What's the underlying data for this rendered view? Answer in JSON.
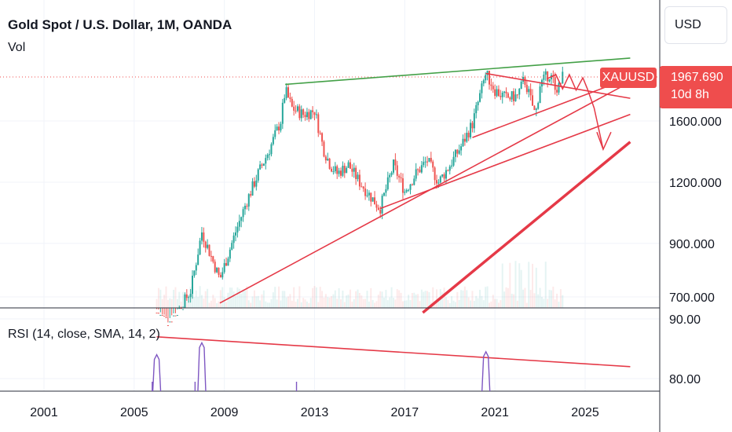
{
  "header": {
    "title": "Gold Spot / U.S. Dollar, 1M, OANDA",
    "vol_label": "Vol",
    "currency_button": "USD"
  },
  "price_tag": {
    "symbol": "XAUUSD",
    "price": "1967.690",
    "time_left": "10d 8h",
    "color": "#ef4d4d"
  },
  "rsi": {
    "label": "RSI (14, close, SMA, 14, 2)",
    "ticks": [
      "90.00",
      "80.00"
    ],
    "line_color": "#7e57c2"
  },
  "colors": {
    "up": "#26a69a",
    "down": "#ef5350",
    "green_line": "#43a047",
    "red_line": "#e53947"
  },
  "chart_data": {
    "type": "candlestick",
    "title": "Gold Spot / U.S. Dollar, 1M, OANDA",
    "x_ticks": [
      "2001",
      "2005",
      "2009",
      "2013",
      "2017",
      "2021",
      "2025"
    ],
    "y_ticks": [
      "1600.000",
      "1200.000",
      "900.000",
      "700.000"
    ],
    "y_scale": "log",
    "last_price": 1967.69,
    "price_path": [
      [
        2006.0,
        650
      ],
      [
        2006.5,
        620
      ],
      [
        2007.0,
        660
      ],
      [
        2007.5,
        720
      ],
      [
        2008.0,
        950
      ],
      [
        2008.8,
        760
      ],
      [
        2009.5,
        950
      ],
      [
        2010.0,
        1100
      ],
      [
        2010.5,
        1250
      ],
      [
        2011.0,
        1400
      ],
      [
        2011.5,
        1600
      ],
      [
        2011.7,
        1850
      ],
      [
        2012.0,
        1700
      ],
      [
        2012.5,
        1650
      ],
      [
        2013.0,
        1680
      ],
      [
        2013.4,
        1400
      ],
      [
        2013.7,
        1300
      ],
      [
        2014.0,
        1250
      ],
      [
        2014.5,
        1300
      ],
      [
        2015.0,
        1200
      ],
      [
        2015.5,
        1120
      ],
      [
        2015.9,
        1060
      ],
      [
        2016.5,
        1300
      ],
      [
        2017.0,
        1150
      ],
      [
        2017.5,
        1250
      ],
      [
        2018.0,
        1330
      ],
      [
        2018.5,
        1200
      ],
      [
        2019.0,
        1300
      ],
      [
        2019.5,
        1420
      ],
      [
        2020.0,
        1580
      ],
      [
        2020.6,
        2000
      ],
      [
        2021.0,
        1850
      ],
      [
        2021.5,
        1780
      ],
      [
        2022.0,
        1800
      ],
      [
        2022.3,
        1950
      ],
      [
        2022.8,
        1640
      ],
      [
        2023.0,
        1900
      ],
      [
        2023.4,
        2000
      ],
      [
        2023.8,
        1850
      ],
      [
        2024.0,
        1968
      ]
    ],
    "trendlines": [
      {
        "color": "green",
        "from": [
          2011.7,
          1900
        ],
        "to": [
          2027.0,
          2150
        ]
      },
      {
        "color": "red",
        "from": [
          2008.8,
          680
        ],
        "to": [
          2026.8,
          1900
        ]
      },
      {
        "color": "red",
        "from": [
          2015.9,
          1060
        ],
        "to": [
          2027.0,
          1650
        ]
      },
      {
        "color": "red",
        "from": [
          2020.0,
          1480
        ],
        "to": [
          2027.0,
          1960
        ]
      },
      {
        "color": "red",
        "from": [
          2017.8,
          650
        ],
        "to": [
          2027.0,
          1450
        ]
      },
      {
        "color": "red",
        "from": [
          2020.6,
          2000
        ],
        "to": [
          2027.0,
          1780
        ]
      }
    ],
    "rsi_trendline": {
      "from": [
        2006.0,
        87
      ],
      "to": [
        2027.0,
        82
      ]
    },
    "rsi_spikes": [
      2006.0,
      2008.0,
      2020.6
    ]
  }
}
